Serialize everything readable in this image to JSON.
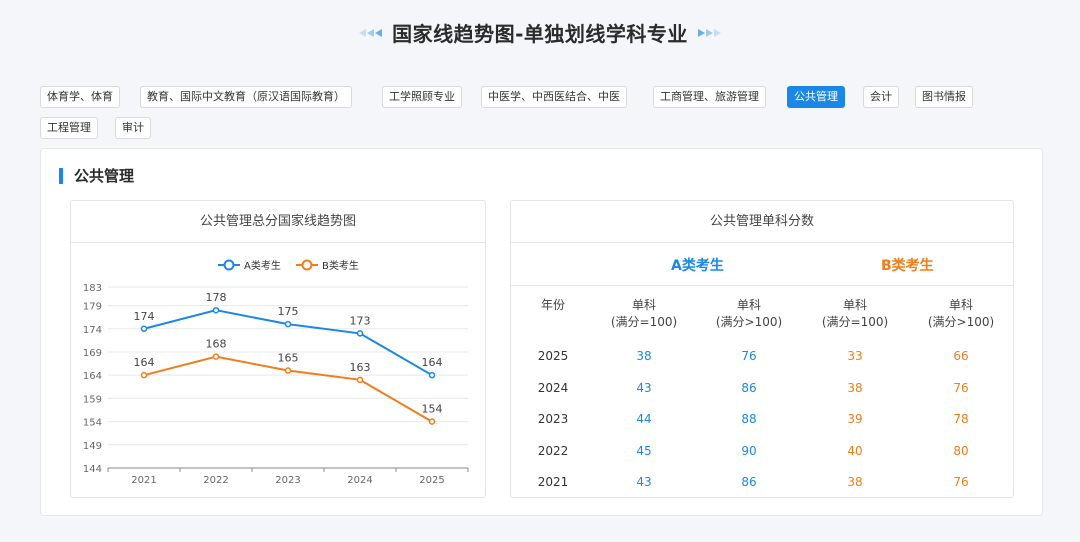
{
  "page": {
    "title": "国家线趋势图-单独划线学科专业"
  },
  "tabs": [
    {
      "label": "体育学、体育",
      "active": false
    },
    {
      "label": "教育、国际中文教育（原汉语国际教育）",
      "active": false
    },
    {
      "label": "工学照顾专业",
      "active": false
    },
    {
      "label": "中医学、中西医结合、中医",
      "active": false
    },
    {
      "label": "工商管理、旅游管理",
      "active": false
    },
    {
      "label": "公共管理",
      "active": true
    },
    {
      "label": "会计",
      "active": false
    },
    {
      "label": "图书情报",
      "active": false
    },
    {
      "label": "工程管理",
      "active": false
    },
    {
      "label": "审计",
      "active": false
    }
  ],
  "section": {
    "title": "公共管理"
  },
  "colors": {
    "accent": "#1b87e6",
    "series_a": "#1b87e6",
    "series_b": "#f07d1a"
  },
  "chart_data": {
    "type": "line",
    "title": "公共管理总分国家线趋势图",
    "categories": [
      "2021",
      "2022",
      "2023",
      "2024",
      "2025"
    ],
    "series": [
      {
        "name": "A类考生",
        "color": "#1b87e6",
        "values": [
          174,
          178,
          175,
          173,
          164
        ]
      },
      {
        "name": "B类考生",
        "color": "#f07d1a",
        "values": [
          164,
          168,
          165,
          163,
          154
        ]
      }
    ],
    "yticks": [
      144,
      149,
      154,
      159,
      164,
      169,
      174,
      179,
      183
    ],
    "ylim": [
      144,
      183
    ],
    "legend": "top-center",
    "grid": true,
    "data_labels": true
  },
  "table": {
    "title": "公共管理单科分数",
    "group_a": "A类考生",
    "group_b": "B类考生",
    "columns": [
      "年份",
      "单科\n(满分=100)",
      "单科\n(满分>100)",
      "单科\n(满分=100)",
      "单科\n(满分>100)"
    ],
    "rows": [
      {
        "year": "2025",
        "a100": "38",
        "a_over": "76",
        "b100": "33",
        "b_over": "66"
      },
      {
        "year": "2024",
        "a100": "43",
        "a_over": "86",
        "b100": "38",
        "b_over": "76"
      },
      {
        "year": "2023",
        "a100": "44",
        "a_over": "88",
        "b100": "39",
        "b_over": "78"
      },
      {
        "year": "2022",
        "a100": "45",
        "a_over": "90",
        "b100": "40",
        "b_over": "80"
      },
      {
        "year": "2021",
        "a100": "43",
        "a_over": "86",
        "b100": "38",
        "b_over": "76"
      }
    ]
  }
}
